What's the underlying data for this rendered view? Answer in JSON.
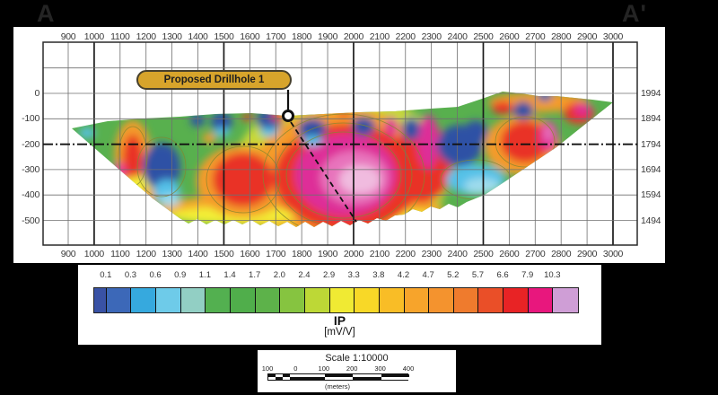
{
  "labels": {
    "corner_left": "A",
    "corner_right": "A'"
  },
  "chart_data": {
    "type": "heatmap",
    "subtype": "contoured IP pseudosection (inversion model) along survey line A to A'",
    "section_start_label": "A",
    "section_end_label": "A'",
    "x_ticks": [
      900,
      1000,
      1100,
      1200,
      1300,
      1400,
      1500,
      1600,
      1700,
      1800,
      1900,
      2000,
      2100,
      2200,
      2300,
      2400,
      2500,
      2600,
      2700,
      2800,
      2900,
      3000
    ],
    "x_tick_interval": 100,
    "depth_ticks_left": [
      0,
      -100,
      -200,
      -300,
      -400,
      -500
    ],
    "elevation_ticks_right": [
      1994,
      1894,
      1794,
      1694,
      1594,
      1494
    ],
    "grid": "on, minor every 100 m, major every 500 m, dash-dot reference line at -200 m (elev 1794)",
    "colorbar": {
      "title": "IP",
      "units": "[mV/V]",
      "tick_labels": [
        "0.1",
        "0.3",
        "0.6",
        "0.9",
        "1.1",
        "1.4",
        "1.7",
        "2.0",
        "2.4",
        "2.9",
        "3.3",
        "3.8",
        "4.2",
        "4.7",
        "5.2",
        "5.7",
        "6.6",
        "7.9",
        "10.3"
      ],
      "cell_colors": [
        "#3952a5",
        "#3c68b8",
        "#36a9de",
        "#6ecbe9",
        "#92cfc4",
        "#53b050",
        "#50ae4b",
        "#5db24a",
        "#86c440",
        "#bdd836",
        "#f0ea33",
        "#f8d827",
        "#f9bd26",
        "#f7a42b",
        "#f4932e",
        "#ef7b2d",
        "#ea4f28",
        "#e82325",
        "#e8177d",
        "#cf9ed6"
      ]
    },
    "scalebar": {
      "title": "Scale 1:10000",
      "tick_labels": [
        "100",
        "0",
        "100",
        "200",
        "300",
        "400"
      ],
      "units": "(meters)"
    },
    "annotations": {
      "drillhole": {
        "label": "Proposed Drillhole 1",
        "collar_distance_m": 1750,
        "collar_depth_m": -90,
        "trace_end_distance_m": 2010,
        "trace_end_depth_m": -500
      }
    },
    "description": "IP chargeability section: high-chargeability magenta-pink core (>6.6 mV/V) centred near 1850-2050 m distance between about -200 and -450 m depth, ringed by red-orange (4-6 mV/V) and green (1-2 mV/V); blue pockets (<0.9 mV/V) along the near-surface; proposed drillhole collars at ~1750 m and is traced through the anomaly."
  }
}
